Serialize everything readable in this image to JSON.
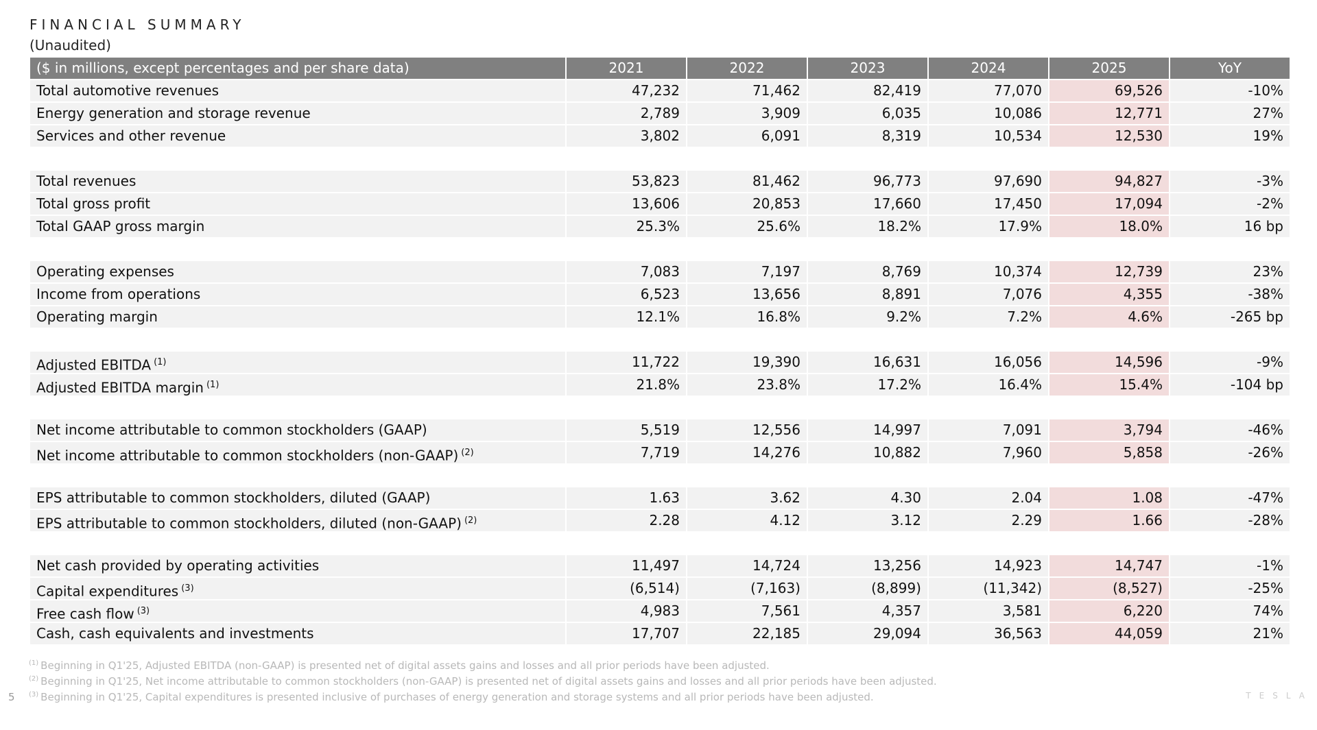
{
  "header": {
    "title": "FINANCIAL SUMMARY",
    "subtitle": "(Unaudited)"
  },
  "table": {
    "columns": [
      "($ in millions, except percentages and per share data)",
      "2021",
      "2022",
      "2023",
      "2024",
      "2025",
      "YoY"
    ],
    "groups": [
      [
        {
          "label": "Total automotive revenues",
          "cells": [
            "47,232",
            "71,462",
            "82,419",
            "77,070",
            "69,526",
            "-10%"
          ]
        },
        {
          "label": "Energy generation and storage revenue",
          "cells": [
            "2,789",
            "3,909",
            "6,035",
            "10,086",
            "12,771",
            "27%"
          ]
        },
        {
          "label": "Services and other revenue",
          "cells": [
            "3,802",
            "6,091",
            "8,319",
            "10,534",
            "12,530",
            "19%"
          ]
        }
      ],
      [
        {
          "label": "Total revenues",
          "cells": [
            "53,823",
            "81,462",
            "96,773",
            "97,690",
            "94,827",
            "-3%"
          ]
        },
        {
          "label": "Total gross profit",
          "cells": [
            "13,606",
            "20,853",
            "17,660",
            "17,450",
            "17,094",
            "-2%"
          ]
        },
        {
          "label": "Total GAAP gross margin",
          "cells": [
            "25.3%",
            "25.6%",
            "18.2%",
            "17.9%",
            "18.0%",
            "16 bp"
          ]
        }
      ],
      [
        {
          "label": "Operating expenses",
          "cells": [
            "7,083",
            "7,197",
            "8,769",
            "10,374",
            "12,739",
            "23%"
          ]
        },
        {
          "label": "Income from operations",
          "cells": [
            "6,523",
            "13,656",
            "8,891",
            "7,076",
            "4,355",
            "-38%"
          ]
        },
        {
          "label": "Operating margin",
          "cells": [
            "12.1%",
            "16.8%",
            "9.2%",
            "7.2%",
            "4.6%",
            "-265 bp"
          ]
        }
      ],
      [
        {
          "label": "Adjusted EBITDA",
          "note": "(1)",
          "cells": [
            "11,722",
            "19,390",
            "16,631",
            "16,056",
            "14,596",
            "-9%"
          ]
        },
        {
          "label": "Adjusted EBITDA margin",
          "note": "(1)",
          "cells": [
            "21.8%",
            "23.8%",
            "17.2%",
            "16.4%",
            "15.4%",
            "-104 bp"
          ]
        }
      ],
      [
        {
          "label": "Net income attributable to common stockholders (GAAP)",
          "cells": [
            "5,519",
            "12,556",
            "14,997",
            "7,091",
            "3,794",
            "-46%"
          ]
        },
        {
          "label": "Net income attributable to common stockholders (non-GAAP)",
          "note": "(2)",
          "cells": [
            "7,719",
            "14,276",
            "10,882",
            "7,960",
            "5,858",
            "-26%"
          ]
        }
      ],
      [
        {
          "label": "EPS attributable to common stockholders, diluted (GAAP)",
          "cells": [
            "1.63",
            "3.62",
            "4.30",
            "2.04",
            "1.08",
            "-47%"
          ]
        },
        {
          "label": "EPS attributable to common stockholders, diluted (non-GAAP)",
          "note": "(2)",
          "cells": [
            "2.28",
            "4.12",
            "3.12",
            "2.29",
            "1.66",
            "-28%"
          ]
        }
      ],
      [
        {
          "label": "Net cash provided by operating activities",
          "cells": [
            "11,497",
            "14,724",
            "13,256",
            "14,923",
            "14,747",
            "-1%"
          ]
        },
        {
          "label": "Capital expenditures",
          "note": "(3)",
          "cells": [
            "(6,514)",
            "(7,163)",
            "(8,899)",
            "(11,342)",
            "(8,527)",
            "-25%"
          ]
        },
        {
          "label": "Free cash flow",
          "note": "(3)",
          "cells": [
            "4,983",
            "7,561",
            "4,357",
            "3,581",
            "6,220",
            "74%"
          ]
        },
        {
          "label": "Cash, cash equivalents and investments",
          "cells": [
            "17,707",
            "22,185",
            "29,094",
            "36,563",
            "44,059",
            "21%"
          ]
        }
      ]
    ]
  },
  "footnotes": [
    {
      "mark": "(1)",
      "text": "Beginning in Q1'25, Adjusted EBITDA (non-GAAP) is presented net of digital assets gains and losses and all prior periods have been adjusted."
    },
    {
      "mark": "(2)",
      "text": "Beginning in Q1'25, Net income attributable to common stockholders (non-GAAP) is presented net of digital assets gains and losses and all prior periods have been adjusted."
    },
    {
      "mark": "(3)",
      "text": "Beginning in Q1'25, Capital expenditures is presented inclusive of purchases of energy generation and storage systems and all prior periods have been adjusted."
    }
  ],
  "footer": {
    "page": "5",
    "logo": "TESLA"
  }
}
